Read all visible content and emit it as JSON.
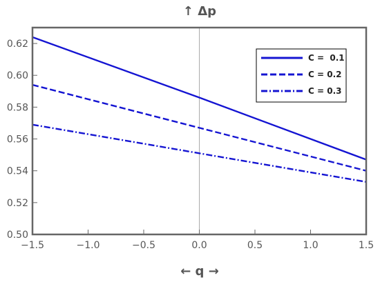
{
  "chart_data": {
    "type": "line",
    "title": "",
    "xlabel": "← q →",
    "ylabel": "↑ Δp",
    "xlim": [
      -1.5,
      1.5
    ],
    "ylim": [
      0.5,
      0.63
    ],
    "xticks": [
      "−1.5",
      "−1.0",
      "−0.5",
      "0.0",
      "0.5",
      "1.0",
      "1.5"
    ],
    "yticks": [
      "0.50",
      "0.52",
      "0.54",
      "0.56",
      "0.58",
      "0.60",
      "0.62"
    ],
    "grid": false,
    "legend_position": "top-right",
    "line_color": "#1414d2",
    "series": [
      {
        "name": "C =  0.1",
        "style": "solid",
        "x": [
          -1.5,
          0.0,
          1.5
        ],
        "y": [
          0.624,
          0.586,
          0.547
        ]
      },
      {
        "name": "C = 0.2",
        "style": "dashed",
        "x": [
          -1.5,
          0.0,
          1.5
        ],
        "y": [
          0.594,
          0.567,
          0.54
        ]
      },
      {
        "name": "C = 0.3",
        "style": "dashdot",
        "x": [
          -1.5,
          0.0,
          1.5
        ],
        "y": [
          0.569,
          0.551,
          0.533
        ]
      }
    ]
  }
}
